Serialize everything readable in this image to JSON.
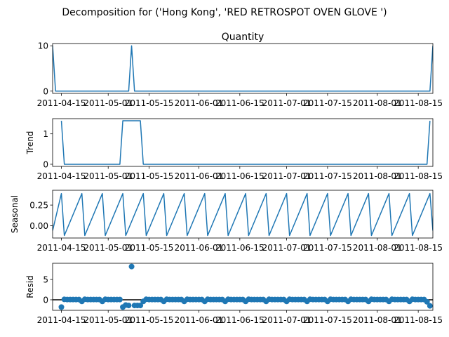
{
  "figure": {
    "suptitle": "Decomposition for ('Hong Kong', 'RED RETROSPOT OVEN GLOVE ')"
  },
  "colors": {
    "series": "#1f77b4",
    "axes": "#000000",
    "background": "#ffffff"
  },
  "chart_data": [
    {
      "type": "line",
      "title": "Quantity",
      "ylabel": "",
      "x_start": "2011-04-12",
      "x_end": "2011-08-20",
      "xlim": [
        "2011-04-12",
        "2011-08-20"
      ],
      "ylim": [
        -0.5,
        10.5
      ],
      "yticks": [
        0,
        10
      ],
      "ytick_labels": [
        "0",
        "10"
      ],
      "xticks": [
        "2011-04-15",
        "2011-05-01",
        "2011-05-15",
        "2011-06-01",
        "2011-06-15",
        "2011-07-01",
        "2011-07-15",
        "2011-08-01",
        "2011-08-15"
      ],
      "xtick_labels": [
        "2011-04-15",
        "2011-05-01",
        "2011-05-15",
        "2011-06-01",
        "2011-06-15",
        "2011-07-01",
        "2011-07-15",
        "2011-08-01",
        "2011-08-15"
      ],
      "grid": false,
      "points": [
        {
          "x": "2011-04-12",
          "y": 10
        },
        {
          "x": "2011-04-13",
          "y": 0
        },
        {
          "x": "2011-05-08",
          "y": 0
        },
        {
          "x": "2011-05-09",
          "y": 10
        },
        {
          "x": "2011-05-10",
          "y": 0
        },
        {
          "x": "2011-08-19",
          "y": 0
        },
        {
          "x": "2011-08-20",
          "y": 10
        }
      ]
    },
    {
      "type": "line",
      "title": "",
      "ylabel": "Trend",
      "x_start": "2011-04-12",
      "x_end": "2011-08-20",
      "xlim": [
        "2011-04-12",
        "2011-08-20"
      ],
      "ylim": [
        -0.07,
        1.5
      ],
      "yticks": [
        0,
        1
      ],
      "ytick_labels": [
        "0",
        "1"
      ],
      "xticks": [
        "2011-04-15",
        "2011-05-01",
        "2011-05-15",
        "2011-06-01",
        "2011-06-15",
        "2011-07-01",
        "2011-07-15",
        "2011-08-01",
        "2011-08-15"
      ],
      "xtick_labels": [
        "2011-04-15",
        "2011-05-01",
        "2011-05-15",
        "2011-06-01",
        "2011-06-15",
        "2011-07-01",
        "2011-07-15",
        "2011-08-01",
        "2011-08-15"
      ],
      "grid": false,
      "points": [
        {
          "x": "2011-04-15",
          "y": 1.43
        },
        {
          "x": "2011-04-16",
          "y": 0
        },
        {
          "x": "2011-05-05",
          "y": 0
        },
        {
          "x": "2011-05-06",
          "y": 1.43
        },
        {
          "x": "2011-05-12",
          "y": 1.43
        },
        {
          "x": "2011-05-13",
          "y": 0
        },
        {
          "x": "2011-08-18",
          "y": 0
        },
        {
          "x": "2011-08-19",
          "y": 1.43
        }
      ]
    },
    {
      "type": "line",
      "title": "",
      "ylabel": "Seasonal",
      "x_start": "2011-04-12",
      "x_end": "2011-08-20",
      "xlim": [
        "2011-04-12",
        "2011-08-20"
      ],
      "ylim": [
        -0.15,
        0.43
      ],
      "yticks": [
        0.25,
        0
      ],
      "ytick_labels": [
        "0.25",
        "0.00"
      ],
      "xticks": [
        "2011-04-15",
        "2011-05-01",
        "2011-05-15",
        "2011-06-01",
        "2011-06-15",
        "2011-07-01",
        "2011-07-15",
        "2011-08-01",
        "2011-08-15"
      ],
      "xtick_labels": [
        "2011-04-15",
        "2011-05-01",
        "2011-05-15",
        "2011-06-01",
        "2011-06-15",
        "2011-07-01",
        "2011-07-15",
        "2011-08-01",
        "2011-08-15"
      ],
      "grid": false,
      "period_days": 7,
      "weekly_pattern": [
        -0.06,
        -0.06,
        -0.06,
        -0.06,
        0.39,
        -0.12,
        -0.06
      ],
      "points": [
        {
          "x": "2011-04-12",
          "y": -0.06
        },
        {
          "x": "2011-04-15",
          "y": 0.39
        },
        {
          "x": "2011-04-16",
          "y": -0.12
        },
        {
          "x": "2011-04-22",
          "y": 0.39
        },
        {
          "x": "2011-04-23",
          "y": -0.12
        },
        {
          "x": "2011-04-29",
          "y": 0.39
        },
        {
          "x": "2011-04-30",
          "y": -0.12
        },
        {
          "x": "2011-05-06",
          "y": 0.39
        },
        {
          "x": "2011-05-07",
          "y": -0.12
        },
        {
          "x": "2011-05-13",
          "y": 0.39
        },
        {
          "x": "2011-05-14",
          "y": -0.12
        },
        {
          "x": "2011-05-20",
          "y": 0.39
        },
        {
          "x": "2011-05-21",
          "y": -0.12
        },
        {
          "x": "2011-05-27",
          "y": 0.39
        },
        {
          "x": "2011-05-28",
          "y": -0.12
        },
        {
          "x": "2011-06-03",
          "y": 0.39
        },
        {
          "x": "2011-06-04",
          "y": -0.12
        },
        {
          "x": "2011-06-10",
          "y": 0.39
        },
        {
          "x": "2011-06-11",
          "y": -0.12
        },
        {
          "x": "2011-06-17",
          "y": 0.39
        },
        {
          "x": "2011-06-18",
          "y": -0.12
        },
        {
          "x": "2011-06-24",
          "y": 0.39
        },
        {
          "x": "2011-06-25",
          "y": -0.12
        },
        {
          "x": "2011-07-01",
          "y": 0.39
        },
        {
          "x": "2011-07-02",
          "y": -0.12
        },
        {
          "x": "2011-07-08",
          "y": 0.39
        },
        {
          "x": "2011-07-09",
          "y": -0.12
        },
        {
          "x": "2011-07-15",
          "y": 0.39
        },
        {
          "x": "2011-07-16",
          "y": -0.12
        },
        {
          "x": "2011-07-22",
          "y": 0.39
        },
        {
          "x": "2011-07-23",
          "y": -0.12
        },
        {
          "x": "2011-07-29",
          "y": 0.39
        },
        {
          "x": "2011-07-30",
          "y": -0.12
        },
        {
          "x": "2011-08-05",
          "y": 0.39
        },
        {
          "x": "2011-08-06",
          "y": -0.12
        },
        {
          "x": "2011-08-12",
          "y": 0.39
        },
        {
          "x": "2011-08-13",
          "y": -0.12
        },
        {
          "x": "2011-08-19",
          "y": 0.39
        },
        {
          "x": "2011-08-20",
          "y": -0.06
        }
      ]
    },
    {
      "type": "scatter",
      "title": "",
      "ylabel": "Resid",
      "x_start": "2011-04-12",
      "x_end": "2011-08-20",
      "xlim": [
        "2011-04-12",
        "2011-08-20"
      ],
      "ylim": [
        -2.6,
        9.0
      ],
      "yticks": [
        5,
        0
      ],
      "ytick_labels": [
        "5",
        "0"
      ],
      "xticks": [
        "2011-04-15",
        "2011-05-01",
        "2011-05-15",
        "2011-06-01",
        "2011-06-15",
        "2011-07-01",
        "2011-07-15",
        "2011-08-01",
        "2011-08-15"
      ],
      "xtick_labels": [
        "2011-04-15",
        "2011-05-01",
        "2011-05-15",
        "2011-06-01",
        "2011-06-15",
        "2011-07-01",
        "2011-07-15",
        "2011-08-01",
        "2011-08-15"
      ],
      "grid": false,
      "zero_line": 0,
      "points": [
        {
          "x": "2011-04-15",
          "y": -1.8
        },
        {
          "x": "2011-04-16",
          "y": 0.1
        },
        {
          "x": "2011-04-17",
          "y": 0.06
        },
        {
          "x": "2011-04-18",
          "y": 0.06
        },
        {
          "x": "2011-04-19",
          "y": 0.06
        },
        {
          "x": "2011-04-20",
          "y": 0.06
        },
        {
          "x": "2011-04-21",
          "y": 0.06
        },
        {
          "x": "2011-04-22",
          "y": -0.39
        },
        {
          "x": "2011-04-23",
          "y": 0.12
        },
        {
          "x": "2011-04-24",
          "y": 0.06
        },
        {
          "x": "2011-04-25",
          "y": 0.06
        },
        {
          "x": "2011-04-26",
          "y": 0.06
        },
        {
          "x": "2011-04-27",
          "y": 0.06
        },
        {
          "x": "2011-04-28",
          "y": 0.06
        },
        {
          "x": "2011-04-29",
          "y": -0.39
        },
        {
          "x": "2011-04-30",
          "y": 0.12
        },
        {
          "x": "2011-05-01",
          "y": 0.06
        },
        {
          "x": "2011-05-02",
          "y": 0.06
        },
        {
          "x": "2011-05-03",
          "y": 0.06
        },
        {
          "x": "2011-05-04",
          "y": 0.06
        },
        {
          "x": "2011-05-05",
          "y": 0.06
        },
        {
          "x": "2011-05-06",
          "y": -1.8
        },
        {
          "x": "2011-05-07",
          "y": -1.3
        },
        {
          "x": "2011-05-08",
          "y": -1.4
        },
        {
          "x": "2011-05-09",
          "y": 8.2
        },
        {
          "x": "2011-05-10",
          "y": -1.4
        },
        {
          "x": "2011-05-11",
          "y": -1.4
        },
        {
          "x": "2011-05-12",
          "y": -1.4
        },
        {
          "x": "2011-05-13",
          "y": -0.39
        },
        {
          "x": "2011-05-14",
          "y": 0.12
        },
        {
          "x": "2011-05-15",
          "y": 0.06
        },
        {
          "x": "2011-05-16",
          "y": 0.06
        },
        {
          "x": "2011-05-17",
          "y": 0.06
        },
        {
          "x": "2011-05-18",
          "y": 0.06
        },
        {
          "x": "2011-05-19",
          "y": 0.06
        },
        {
          "x": "2011-05-20",
          "y": -0.39
        },
        {
          "x": "2011-05-21",
          "y": 0.12
        },
        {
          "x": "2011-05-22",
          "y": 0.06
        },
        {
          "x": "2011-05-23",
          "y": 0.06
        },
        {
          "x": "2011-05-24",
          "y": 0.06
        },
        {
          "x": "2011-05-25",
          "y": 0.06
        },
        {
          "x": "2011-05-26",
          "y": 0.06
        },
        {
          "x": "2011-05-27",
          "y": -0.39
        },
        {
          "x": "2011-05-28",
          "y": 0.12
        },
        {
          "x": "2011-05-29",
          "y": 0.06
        },
        {
          "x": "2011-05-30",
          "y": 0.06
        },
        {
          "x": "2011-05-31",
          "y": 0.06
        },
        {
          "x": "2011-06-01",
          "y": 0.06
        },
        {
          "x": "2011-06-02",
          "y": 0.06
        },
        {
          "x": "2011-06-03",
          "y": -0.39
        },
        {
          "x": "2011-06-04",
          "y": 0.12
        },
        {
          "x": "2011-06-05",
          "y": 0.06
        },
        {
          "x": "2011-06-06",
          "y": 0.06
        },
        {
          "x": "2011-06-07",
          "y": 0.06
        },
        {
          "x": "2011-06-08",
          "y": 0.06
        },
        {
          "x": "2011-06-09",
          "y": 0.06
        },
        {
          "x": "2011-06-10",
          "y": -0.39
        },
        {
          "x": "2011-06-11",
          "y": 0.12
        },
        {
          "x": "2011-06-12",
          "y": 0.06
        },
        {
          "x": "2011-06-13",
          "y": 0.06
        },
        {
          "x": "2011-06-14",
          "y": 0.06
        },
        {
          "x": "2011-06-15",
          "y": 0.06
        },
        {
          "x": "2011-06-16",
          "y": 0.06
        },
        {
          "x": "2011-06-17",
          "y": -0.39
        },
        {
          "x": "2011-06-18",
          "y": 0.12
        },
        {
          "x": "2011-06-19",
          "y": 0.06
        },
        {
          "x": "2011-06-20",
          "y": 0.06
        },
        {
          "x": "2011-06-21",
          "y": 0.06
        },
        {
          "x": "2011-06-22",
          "y": 0.06
        },
        {
          "x": "2011-06-23",
          "y": 0.06
        },
        {
          "x": "2011-06-24",
          "y": -0.39
        },
        {
          "x": "2011-06-25",
          "y": 0.12
        },
        {
          "x": "2011-06-26",
          "y": 0.06
        },
        {
          "x": "2011-06-27",
          "y": 0.06
        },
        {
          "x": "2011-06-28",
          "y": 0.06
        },
        {
          "x": "2011-06-29",
          "y": 0.06
        },
        {
          "x": "2011-06-30",
          "y": 0.06
        },
        {
          "x": "2011-07-01",
          "y": -0.39
        },
        {
          "x": "2011-07-02",
          "y": 0.12
        },
        {
          "x": "2011-07-03",
          "y": 0.06
        },
        {
          "x": "2011-07-04",
          "y": 0.06
        },
        {
          "x": "2011-07-05",
          "y": 0.06
        },
        {
          "x": "2011-07-06",
          "y": 0.06
        },
        {
          "x": "2011-07-07",
          "y": 0.06
        },
        {
          "x": "2011-07-08",
          "y": -0.39
        },
        {
          "x": "2011-07-09",
          "y": 0.12
        },
        {
          "x": "2011-07-10",
          "y": 0.06
        },
        {
          "x": "2011-07-11",
          "y": 0.06
        },
        {
          "x": "2011-07-12",
          "y": 0.06
        },
        {
          "x": "2011-07-13",
          "y": 0.06
        },
        {
          "x": "2011-07-14",
          "y": 0.06
        },
        {
          "x": "2011-07-15",
          "y": -0.39
        },
        {
          "x": "2011-07-16",
          "y": 0.12
        },
        {
          "x": "2011-07-17",
          "y": 0.06
        },
        {
          "x": "2011-07-18",
          "y": 0.06
        },
        {
          "x": "2011-07-19",
          "y": 0.06
        },
        {
          "x": "2011-07-20",
          "y": 0.06
        },
        {
          "x": "2011-07-21",
          "y": 0.06
        },
        {
          "x": "2011-07-22",
          "y": -0.39
        },
        {
          "x": "2011-07-23",
          "y": 0.12
        },
        {
          "x": "2011-07-24",
          "y": 0.06
        },
        {
          "x": "2011-07-25",
          "y": 0.06
        },
        {
          "x": "2011-07-26",
          "y": 0.06
        },
        {
          "x": "2011-07-27",
          "y": 0.06
        },
        {
          "x": "2011-07-28",
          "y": 0.06
        },
        {
          "x": "2011-07-29",
          "y": -0.39
        },
        {
          "x": "2011-07-30",
          "y": 0.12
        },
        {
          "x": "2011-07-31",
          "y": 0.06
        },
        {
          "x": "2011-08-01",
          "y": 0.06
        },
        {
          "x": "2011-08-02",
          "y": 0.06
        },
        {
          "x": "2011-08-03",
          "y": 0.06
        },
        {
          "x": "2011-08-04",
          "y": 0.06
        },
        {
          "x": "2011-08-05",
          "y": -0.39
        },
        {
          "x": "2011-08-06",
          "y": 0.12
        },
        {
          "x": "2011-08-07",
          "y": 0.06
        },
        {
          "x": "2011-08-08",
          "y": 0.06
        },
        {
          "x": "2011-08-09",
          "y": 0.06
        },
        {
          "x": "2011-08-10",
          "y": 0.06
        },
        {
          "x": "2011-08-11",
          "y": 0.06
        },
        {
          "x": "2011-08-12",
          "y": -0.39
        },
        {
          "x": "2011-08-13",
          "y": 0.12
        },
        {
          "x": "2011-08-14",
          "y": 0.06
        },
        {
          "x": "2011-08-15",
          "y": 0.06
        },
        {
          "x": "2011-08-16",
          "y": 0.06
        },
        {
          "x": "2011-08-17",
          "y": 0.06
        },
        {
          "x": "2011-08-18",
          "y": -0.5
        },
        {
          "x": "2011-08-19",
          "y": -1.5
        }
      ]
    }
  ]
}
